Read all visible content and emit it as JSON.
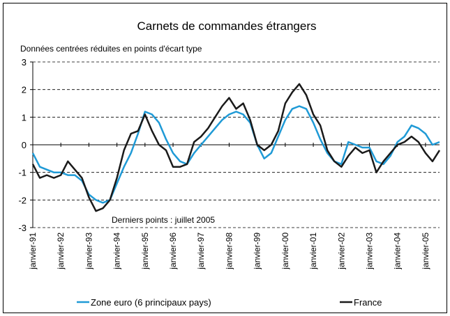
{
  "chart_data": {
    "type": "line",
    "title": "Carnets de commandes étrangers",
    "subtitle": "Données centrées réduites en points d'écart type",
    "annotation": "Derniers points : juillet 2005",
    "x": [
      1991,
      1991.25,
      1991.5,
      1991.75,
      1992,
      1992.25,
      1992.5,
      1992.75,
      1993,
      1993.25,
      1993.5,
      1993.75,
      1994,
      1994.25,
      1994.5,
      1994.75,
      1995,
      1995.25,
      1995.5,
      1995.75,
      1996,
      1996.25,
      1996.5,
      1996.75,
      1997,
      1997.25,
      1997.5,
      1997.75,
      1998,
      1998.25,
      1998.5,
      1998.75,
      1999,
      1999.25,
      1999.5,
      1999.75,
      2000,
      2000.25,
      2000.5,
      2000.75,
      2001,
      2001.25,
      2001.5,
      2001.75,
      2002,
      2002.25,
      2002.5,
      2002.75,
      2003,
      2003.25,
      2003.5,
      2003.75,
      2004,
      2004.25,
      2004.5,
      2004.75,
      2005,
      2005.25,
      2005.5
    ],
    "series": [
      {
        "name": "Zone euro (6 principaux pays)",
        "color": "#1f9ad6",
        "values": [
          -0.3,
          -0.8,
          -0.9,
          -1.0,
          -1.0,
          -1.1,
          -1.1,
          -1.3,
          -1.8,
          -2.0,
          -2.1,
          -2.0,
          -1.4,
          -0.8,
          -0.3,
          0.4,
          1.2,
          1.1,
          0.8,
          0.2,
          -0.3,
          -0.6,
          -0.7,
          -0.3,
          0.0,
          0.3,
          0.6,
          0.9,
          1.1,
          1.2,
          1.1,
          0.8,
          0.0,
          -0.5,
          -0.3,
          0.3,
          0.9,
          1.3,
          1.4,
          1.3,
          0.8,
          0.2,
          -0.3,
          -0.6,
          -0.7,
          0.1,
          0.0,
          -0.1,
          -0.1,
          -0.6,
          -0.7,
          -0.4,
          0.1,
          0.3,
          0.7,
          0.6,
          0.4,
          0.0,
          0.1
        ]
      },
      {
        "name": "France",
        "color": "#1a1a1a",
        "values": [
          -0.7,
          -1.2,
          -1.1,
          -1.2,
          -1.1,
          -0.6,
          -0.9,
          -1.2,
          -1.9,
          -2.4,
          -2.3,
          -2.0,
          -1.2,
          -0.2,
          0.4,
          0.5,
          1.1,
          0.5,
          0.0,
          -0.2,
          -0.8,
          -0.8,
          -0.7,
          0.1,
          0.3,
          0.6,
          1.0,
          1.4,
          1.7,
          1.3,
          1.5,
          0.9,
          0.0,
          -0.2,
          0.0,
          0.5,
          1.5,
          1.9,
          2.2,
          1.8,
          1.1,
          0.7,
          -0.2,
          -0.6,
          -0.8,
          -0.4,
          -0.1,
          -0.3,
          -0.2,
          -1.0,
          -0.6,
          -0.3,
          0.0,
          0.1,
          0.3,
          0.1,
          -0.3,
          -0.6,
          -0.2
        ]
      }
    ],
    "xlim": [
      1991,
      2005.5
    ],
    "xticks": [
      {
        "value": 1991,
        "label": "janvier-91"
      },
      {
        "value": 1992,
        "label": "janvier-92"
      },
      {
        "value": 1993,
        "label": "janvier-93"
      },
      {
        "value": 1994,
        "label": "janvier-94"
      },
      {
        "value": 1995,
        "label": "janvier-95"
      },
      {
        "value": 1996,
        "label": "janvier-96"
      },
      {
        "value": 1997,
        "label": "janvier-97"
      },
      {
        "value": 1998,
        "label": "janvier-98"
      },
      {
        "value": 1999,
        "label": "janvier-99"
      },
      {
        "value": 2000,
        "label": "janvier-00"
      },
      {
        "value": 2001,
        "label": "janvier-01"
      },
      {
        "value": 2002,
        "label": "janvier-02"
      },
      {
        "value": 2003,
        "label": "janvier-03"
      },
      {
        "value": 2004,
        "label": "janvier-04"
      },
      {
        "value": 2005,
        "label": "janvier-05"
      }
    ],
    "ylim": [
      -3,
      3
    ],
    "yticks": [
      -3,
      -2,
      -1,
      0,
      1,
      2,
      3
    ],
    "grid": true,
    "legend": "bottom"
  }
}
